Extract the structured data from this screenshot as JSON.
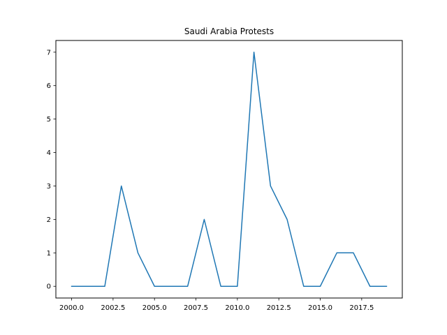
{
  "chart_data": {
    "type": "line",
    "title": "Saudi Arabia Protests",
    "xlabel": "",
    "ylabel": "",
    "x": [
      2000,
      2001,
      2002,
      2003,
      2004,
      2005,
      2006,
      2007,
      2008,
      2009,
      2010,
      2011,
      2012,
      2013,
      2014,
      2015,
      2016,
      2017,
      2018,
      2019
    ],
    "series": [
      {
        "values": [
          0,
          0,
          0,
          3,
          1,
          0,
          0,
          0,
          2,
          0,
          0,
          7,
          3,
          2,
          0,
          0,
          1,
          1,
          0,
          0
        ],
        "color": "#1f77b4"
      }
    ],
    "xlim": [
      1999.05,
      2019.95
    ],
    "ylim": [
      -0.35,
      7.35
    ],
    "xticks": [
      2000.0,
      2002.5,
      2005.0,
      2007.5,
      2010.0,
      2012.5,
      2015.0,
      2017.5
    ],
    "xtick_labels": [
      "2000.0",
      "2002.5",
      "2005.0",
      "2007.5",
      "2010.0",
      "2012.5",
      "2015.0",
      "2017.5"
    ],
    "yticks": [
      0,
      1,
      2,
      3,
      4,
      5,
      6,
      7
    ],
    "ytick_labels": [
      "0",
      "1",
      "2",
      "3",
      "4",
      "5",
      "6",
      "7"
    ],
    "grid": false,
    "legend": false
  }
}
